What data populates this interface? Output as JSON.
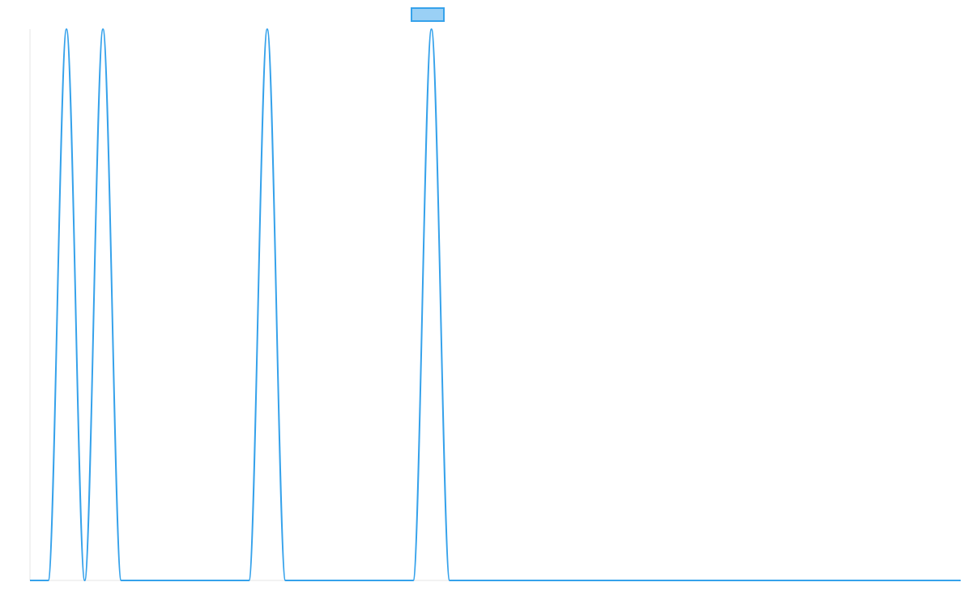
{
  "colors": {
    "series_line": "#36a2eb",
    "series_fill": "#9ad0f5",
    "axis": "#e5e5e5",
    "background": "#ffffff"
  },
  "chart_data": {
    "type": "line",
    "title": "",
    "xlabel": "",
    "ylabel": "",
    "grid": false,
    "legend": "top-center",
    "x": [
      0,
      22.5,
      45,
      67.5,
      90,
      112.5,
      270,
      292.5,
      315,
      472.5,
      495,
      517.5,
      1147.5
    ],
    "xlim": [
      0,
      1147.5
    ],
    "ylim": [
      0,
      1
    ],
    "series": [
      {
        "name": "",
        "values": [
          0,
          0,
          1,
          0,
          1,
          0,
          0,
          1,
          0,
          0,
          1,
          0,
          0
        ]
      }
    ]
  }
}
